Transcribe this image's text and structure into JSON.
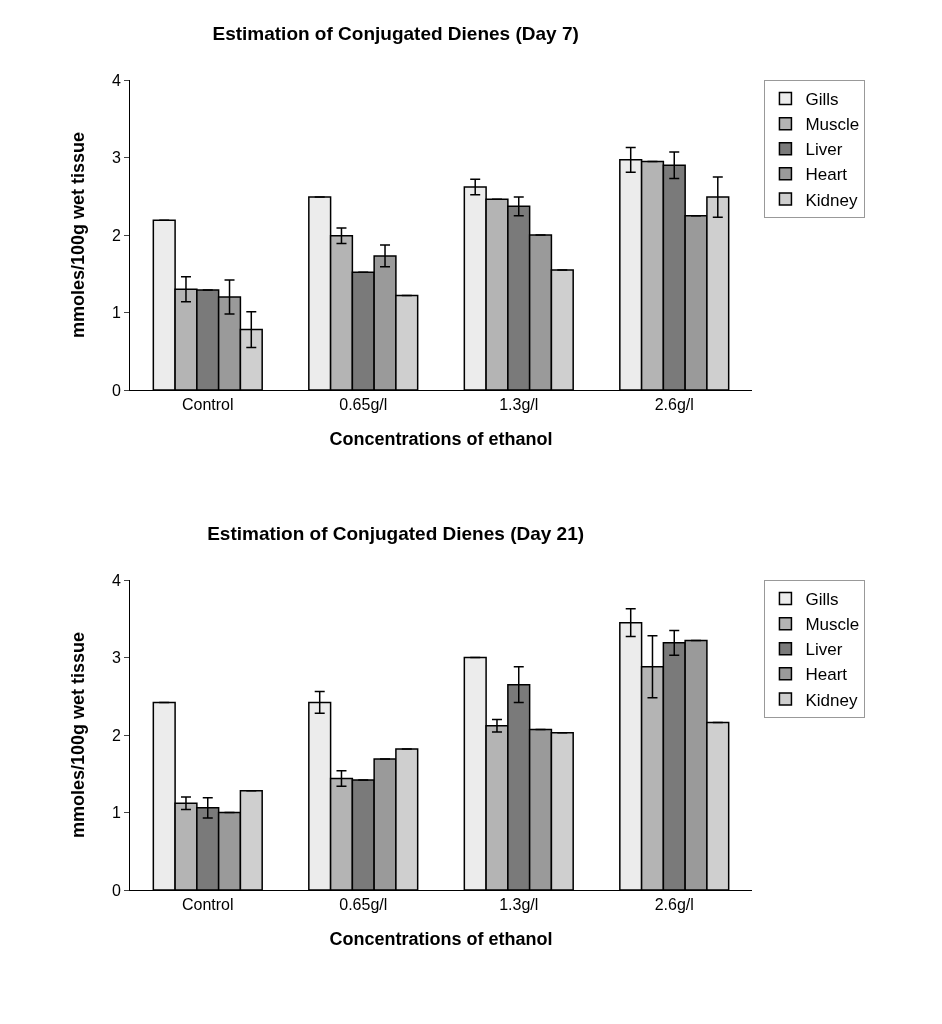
{
  "chart_data": [
    {
      "type": "bar",
      "title": "Estimation of Conjugated Dienes (Day 7)",
      "xlabel": "Concentrations of ethanol",
      "ylabel": "mmoles/100g wet tissue",
      "categories": [
        "Control",
        "0.65g/l",
        "1.3g/l",
        "2.6g/l"
      ],
      "ylim": [
        0,
        4
      ],
      "yticks": [
        0,
        1,
        2,
        3,
        4
      ],
      "grid": false,
      "legend": "top right",
      "series": [
        {
          "name": "Gills",
          "color": "#ececec",
          "values": [
            2.19,
            2.49,
            2.62,
            2.97
          ],
          "errors": [
            null,
            null,
            0.1,
            0.16
          ]
        },
        {
          "name": "Muscle",
          "color": "#b4b4b4",
          "values": [
            1.3,
            1.99,
            2.46,
            2.95
          ],
          "errors": [
            0.16,
            0.1,
            null,
            null
          ]
        },
        {
          "name": "Liver",
          "color": "#7a7a7a",
          "values": [
            1.29,
            1.52,
            2.37,
            2.9
          ],
          "errors": [
            null,
            null,
            0.12,
            0.17
          ]
        },
        {
          "name": "Heart",
          "color": "#9a9a9a",
          "values": [
            1.2,
            1.73,
            2.0,
            2.25
          ],
          "errors": [
            0.22,
            0.14,
            null,
            null
          ]
        },
        {
          "name": "Kidney",
          "color": "#cfcfcf",
          "values": [
            0.78,
            1.22,
            1.55,
            2.49
          ],
          "errors": [
            0.23,
            null,
            null,
            0.26
          ]
        }
      ]
    },
    {
      "type": "bar",
      "title": "Estimation of Conjugated Dienes (Day 21)",
      "xlabel": "Concentrations of ethanol",
      "ylabel": "mmoles/100g wet tissue",
      "categories": [
        "Control",
        "0.65g/l",
        "1.3g/l",
        "2.6g/l"
      ],
      "ylim": [
        0,
        4
      ],
      "yticks": [
        0,
        1,
        2,
        3,
        4
      ],
      "grid": false,
      "legend": "top right",
      "series": [
        {
          "name": "Gills",
          "color": "#ececec",
          "values": [
            2.42,
            2.42,
            3.0,
            3.45
          ],
          "errors": [
            null,
            0.14,
            null,
            0.18
          ]
        },
        {
          "name": "Muscle",
          "color": "#b4b4b4",
          "values": [
            1.12,
            1.44,
            2.12,
            2.88
          ],
          "errors": [
            0.08,
            0.1,
            0.08,
            0.4
          ]
        },
        {
          "name": "Liver",
          "color": "#7a7a7a",
          "values": [
            1.06,
            1.42,
            2.65,
            3.19
          ],
          "errors": [
            0.13,
            null,
            0.23,
            0.16
          ]
        },
        {
          "name": "Heart",
          "color": "#9a9a9a",
          "values": [
            1.0,
            1.69,
            2.07,
            3.22
          ],
          "errors": [
            null,
            null,
            null,
            null
          ]
        },
        {
          "name": "Kidney",
          "color": "#cfcfcf",
          "values": [
            1.28,
            1.82,
            2.03,
            2.16
          ],
          "errors": [
            null,
            null,
            null,
            null
          ]
        }
      ]
    }
  ]
}
